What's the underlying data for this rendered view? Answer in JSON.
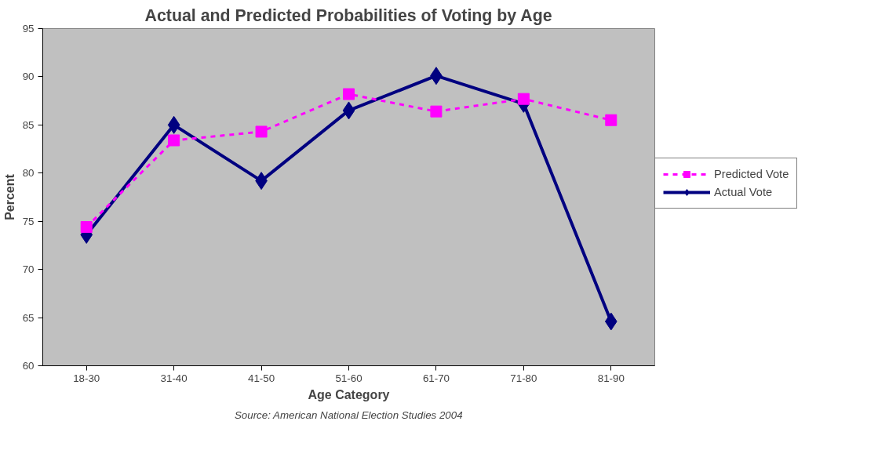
{
  "chart_data": {
    "type": "line",
    "title": "Actual and Predicted Probabilities of Voting by Age",
    "xlabel": "Age Category",
    "ylabel": "Percent",
    "categories": [
      "18-30",
      "31-40",
      "41-50",
      "51-60",
      "61-70",
      "71-80",
      "81-90"
    ],
    "series": [
      {
        "name": "Predicted Vote",
        "color": "#ff00ff",
        "line_style": "dashed",
        "marker": "square",
        "values": [
          74.4,
          83.4,
          84.3,
          88.2,
          86.4,
          87.7,
          85.5
        ]
      },
      {
        "name": "Actual Vote",
        "color": "#000080",
        "line_style": "solid",
        "marker": "diamond",
        "values": [
          73.6,
          85.0,
          79.2,
          86.5,
          90.1,
          87.2,
          64.6
        ]
      }
    ],
    "ylim": [
      60,
      95
    ],
    "yticks": [
      60,
      65,
      70,
      75,
      80,
      85,
      90,
      95
    ],
    "grid": false,
    "legend": "right",
    "annotations": [
      "Source: American National Election Studies 2004"
    ]
  }
}
